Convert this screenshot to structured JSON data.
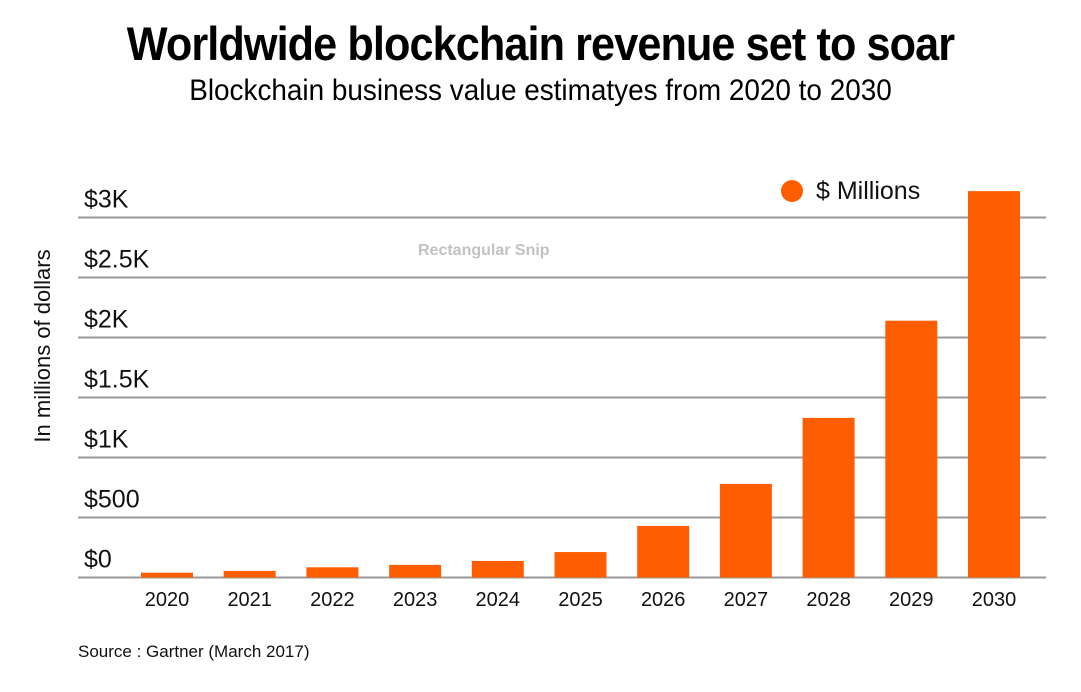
{
  "header": {
    "title": "Worldwide blockchain revenue set to soar",
    "subtitle": "Blockchain business value estimatyes from 2020 to 2030"
  },
  "watermark": "Rectangular Snip",
  "source": "Source : Gartner (March 2017)",
  "colors": {
    "bar": "#FF5E00",
    "grid": "#999999"
  },
  "chart_data": {
    "type": "bar",
    "title": "Worldwide blockchain revenue set to soar",
    "subtitle": "Blockchain business value estimatyes from 2020 to 2030",
    "xlabel": "",
    "ylabel": "In millions of dollars",
    "categories": [
      "2020",
      "2021",
      "2022",
      "2023",
      "2024",
      "2025",
      "2026",
      "2027",
      "2028",
      "2029",
      "2030"
    ],
    "series": [
      {
        "name": "$ Millions",
        "values": [
          40,
          55,
          85,
          105,
          138,
          212,
          430,
          780,
          1330,
          2140,
          3220
        ]
      }
    ],
    "ylim": [
      0,
      3000
    ],
    "yticks": [
      0,
      500,
      1000,
      1500,
      2000,
      2500,
      3000
    ],
    "ytick_labels": [
      "$0",
      "$500",
      "$1K",
      "$1.5K",
      "$2K",
      "$2.5K",
      "$3K"
    ],
    "grid": true,
    "legend": {
      "position": "top-right",
      "entries": [
        "$ Millions"
      ]
    }
  }
}
